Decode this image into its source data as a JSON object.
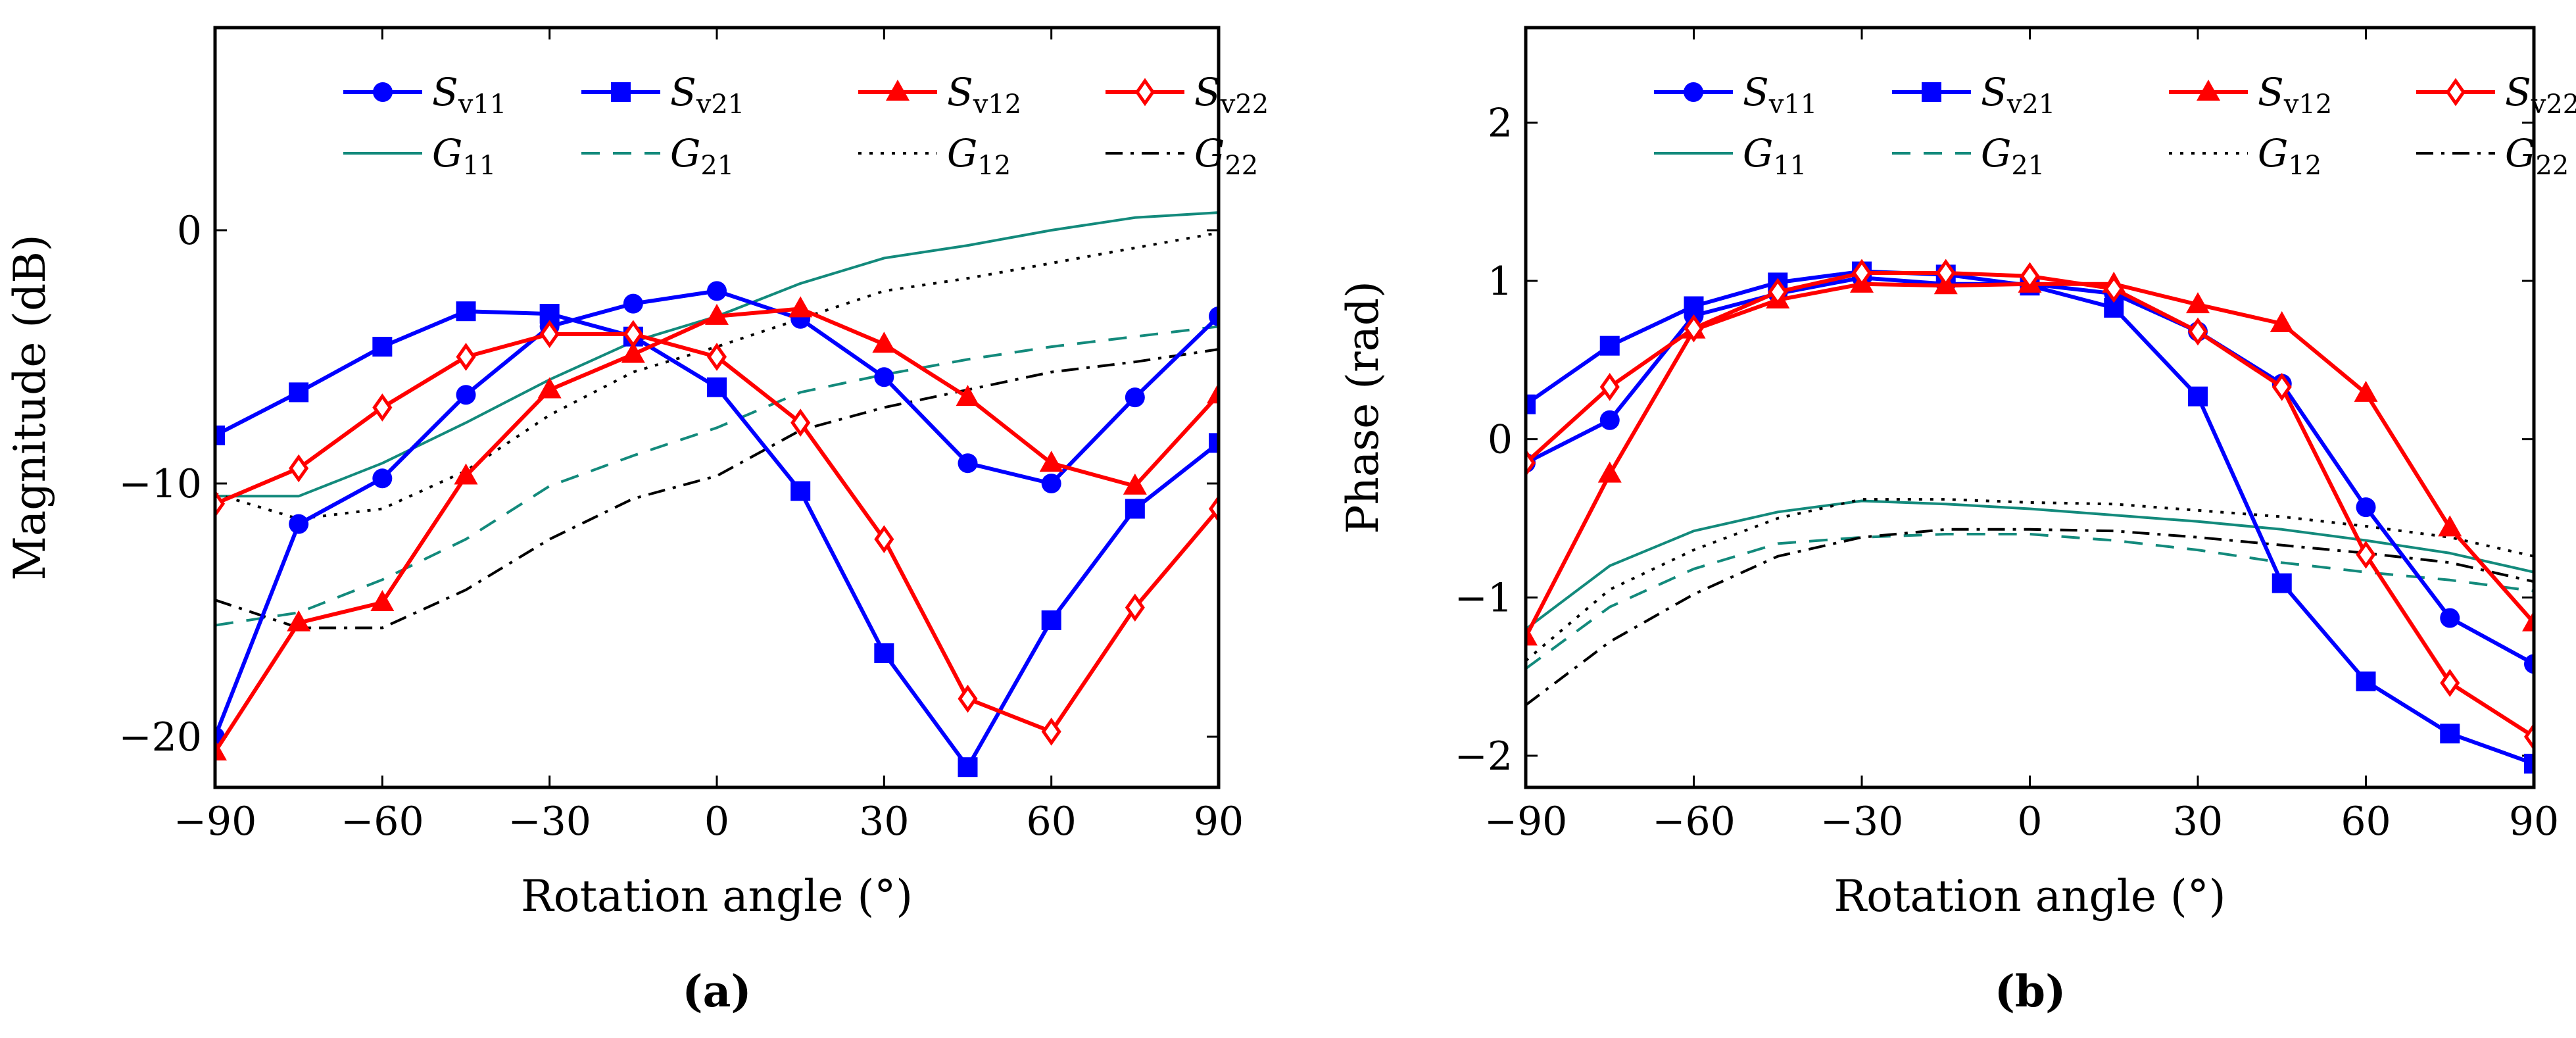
{
  "chart_data": [
    {
      "type": "line",
      "panel_label": "(a)",
      "xlabel": "Rotation angle (°)",
      "ylabel": "Magnitude (dB)",
      "xlim": [
        -90,
        90
      ],
      "ylim": [
        -22,
        8
      ],
      "xticks": [
        -90,
        -60,
        -30,
        0,
        30,
        60,
        90
      ],
      "yticks": [
        -20,
        -10,
        0
      ],
      "x": [
        -90,
        -75,
        -60,
        -45,
        -30,
        -15,
        0,
        15,
        30,
        45,
        60,
        75,
        90
      ],
      "series": [
        {
          "name": "Sv11",
          "label_main": "S",
          "label_sub": "v11",
          "color": "#0000ff",
          "marker": "circle",
          "values": [
            -20,
            -11.6,
            -9.8,
            -6.5,
            -3.8,
            -2.9,
            -2.4,
            -3.5,
            -5.8,
            -9.2,
            -10.0,
            -6.6,
            -3.4
          ]
        },
        {
          "name": "Sv21",
          "label_main": "S",
          "label_sub": "v21",
          "color": "#0000ff",
          "marker": "square",
          "values": [
            -8.1,
            -6.4,
            -4.6,
            -3.2,
            -3.3,
            -4.2,
            -6.2,
            -10.3,
            -16.7,
            -21.2,
            -15.4,
            -11.0,
            -8.4
          ]
        },
        {
          "name": "Sv12",
          "label_main": "S",
          "label_sub": "v12",
          "color": "#ff0000",
          "marker": "triangle",
          "values": [
            -20.6,
            -15.5,
            -14.7,
            -9.7,
            -6.3,
            -4.9,
            -3.4,
            -3.1,
            -4.5,
            -6.6,
            -9.2,
            -10.1,
            -6.5
          ]
        },
        {
          "name": "Sv22",
          "label_main": "S",
          "label_sub": "v22",
          "color": "#ff0000",
          "marker": "diamond",
          "values": [
            -10.8,
            -9.4,
            -7.0,
            -5.0,
            -4.1,
            -4.1,
            -5.0,
            -7.6,
            -12.2,
            -18.5,
            -19.8,
            -14.9,
            -11.0
          ]
        },
        {
          "name": "G11",
          "label_main": "G",
          "label_sub": "11",
          "color": "#138a7c",
          "dash": "solid",
          "values": [
            -10.5,
            -10.5,
            -9.2,
            -7.6,
            -5.9,
            -4.4,
            -3.4,
            -2.1,
            -1.1,
            -0.6,
            0.0,
            0.5,
            0.7
          ]
        },
        {
          "name": "G21",
          "label_main": "G",
          "label_sub": "21",
          "color": "#138a7c",
          "dash": "dashed",
          "values": [
            -15.6,
            -15.1,
            -13.8,
            -12.2,
            -10.1,
            -8.9,
            -7.8,
            -6.4,
            -5.7,
            -5.1,
            -4.6,
            -4.2,
            -3.8
          ]
        },
        {
          "name": "G12",
          "label_main": "G",
          "label_sub": "12",
          "color": "#000000",
          "dash": "dotted",
          "values": [
            -10.4,
            -11.4,
            -11.0,
            -9.5,
            -7.3,
            -5.6,
            -4.6,
            -3.5,
            -2.4,
            -1.9,
            -1.3,
            -0.7,
            -0.1
          ]
        },
        {
          "name": "G22",
          "label_main": "G",
          "label_sub": "22",
          "color": "#000000",
          "dash": "dashdot",
          "values": [
            -14.6,
            -15.7,
            -15.7,
            -14.2,
            -12.2,
            -10.6,
            -9.7,
            -7.9,
            -7.0,
            -6.3,
            -5.6,
            -5.2,
            -4.7
          ]
        }
      ]
    },
    {
      "type": "line",
      "panel_label": "(b)",
      "xlabel": "Rotation angle (°)",
      "ylabel": "Phase (rad)",
      "xlim": [
        -90,
        90
      ],
      "ylim": [
        -2.2,
        2.6
      ],
      "xticks": [
        -90,
        -60,
        -30,
        0,
        30,
        60,
        90
      ],
      "yticks": [
        -2,
        -1,
        0,
        1,
        2
      ],
      "x": [
        -90,
        -75,
        -60,
        -45,
        -30,
        -15,
        0,
        15,
        30,
        45,
        60,
        75,
        90
      ],
      "series": [
        {
          "name": "Sv11",
          "label_main": "S",
          "label_sub": "v11",
          "color": "#0000ff",
          "marker": "circle",
          "values": [
            -0.15,
            0.12,
            0.78,
            0.92,
            1.02,
            0.98,
            0.98,
            0.92,
            0.68,
            0.35,
            -0.43,
            -1.13,
            -1.42
          ]
        },
        {
          "name": "Sv21",
          "label_main": "S",
          "label_sub": "v21",
          "color": "#0000ff",
          "marker": "square",
          "values": [
            0.22,
            0.59,
            0.84,
            0.99,
            1.06,
            1.04,
            0.97,
            0.83,
            0.27,
            -0.91,
            -1.53,
            -1.86,
            -2.05
          ]
        },
        {
          "name": "Sv12",
          "label_main": "S",
          "label_sub": "v12",
          "color": "#ff0000",
          "marker": "triangle",
          "values": [
            -1.25,
            -0.22,
            0.69,
            0.88,
            0.98,
            0.97,
            0.98,
            0.98,
            0.85,
            0.73,
            0.29,
            -0.56,
            -1.16
          ]
        },
        {
          "name": "Sv22",
          "label_main": "S",
          "label_sub": "v22",
          "color": "#ff0000",
          "marker": "diamond",
          "values": [
            -0.15,
            0.33,
            0.7,
            0.93,
            1.05,
            1.05,
            1.03,
            0.95,
            0.68,
            0.33,
            -0.73,
            -1.54,
            -1.88
          ]
        },
        {
          "name": "G11",
          "label_main": "G",
          "label_sub": "11",
          "color": "#138a7c",
          "dash": "solid",
          "values": [
            -1.2,
            -0.8,
            -0.58,
            -0.46,
            -0.39,
            -0.41,
            -0.44,
            -0.48,
            -0.52,
            -0.57,
            -0.64,
            -0.72,
            -0.84
          ]
        },
        {
          "name": "G21",
          "label_main": "G",
          "label_sub": "21",
          "color": "#138a7c",
          "dash": "dashed",
          "values": [
            -1.45,
            -1.06,
            -0.82,
            -0.66,
            -0.62,
            -0.6,
            -0.6,
            -0.64,
            -0.7,
            -0.78,
            -0.84,
            -0.89,
            -0.96
          ]
        },
        {
          "name": "G12",
          "label_main": "G",
          "label_sub": "12",
          "color": "#000000",
          "dash": "dotted",
          "values": [
            -1.4,
            -0.95,
            -0.7,
            -0.5,
            -0.38,
            -0.38,
            -0.4,
            -0.41,
            -0.45,
            -0.49,
            -0.55,
            -0.62,
            -0.74
          ]
        },
        {
          "name": "G22",
          "label_main": "G",
          "label_sub": "22",
          "color": "#000000",
          "dash": "dashdot",
          "values": [
            -1.68,
            -1.28,
            -0.98,
            -0.74,
            -0.62,
            -0.57,
            -0.57,
            -0.58,
            -0.62,
            -0.67,
            -0.72,
            -0.78,
            -0.9
          ]
        }
      ]
    }
  ]
}
